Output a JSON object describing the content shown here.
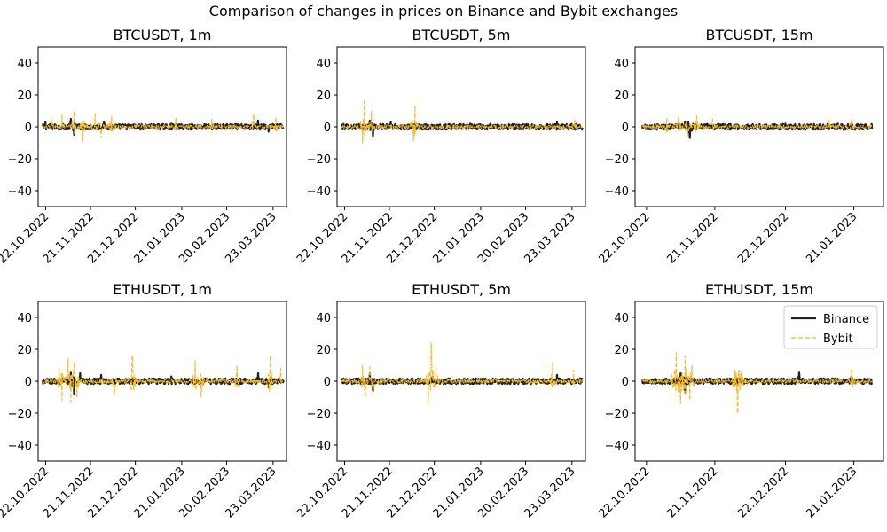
{
  "figure": {
    "title": "Comparison of changes in prices on Binance and Bybit exchanges"
  },
  "colors": {
    "binance": "#1e2329",
    "bybit": "#f7b928",
    "axes": "#000000",
    "background": "#ffffff"
  },
  "legend": {
    "location": "upper right of ETHUSDT, 15m panel",
    "items": [
      {
        "label": "Binance",
        "style": "solid"
      },
      {
        "label": "Bybit",
        "style": "dashed"
      }
    ]
  },
  "chart_data": [
    {
      "type": "line",
      "title": "BTCUSDT, 1m",
      "ylim": [
        -50,
        50
      ],
      "yticks": [
        40,
        20,
        0,
        -20,
        -40
      ],
      "xlim": [
        "2022-10-17",
        "2023-04-01"
      ],
      "xticks": [
        {
          "label": "22.10.2022",
          "date": "2022-10-22"
        },
        {
          "label": "21.11.2022",
          "date": "2022-11-21"
        },
        {
          "label": "21.12.2022",
          "date": "2022-12-21"
        },
        {
          "label": "21.01.2023",
          "date": "2023-01-21"
        },
        {
          "label": "20.02.2023",
          "date": "2023-02-20"
        },
        {
          "label": "23.03.2023",
          "date": "2023-03-23"
        }
      ],
      "x_range": [
        "2022-10-20",
        "2023-03-30"
      ],
      "series": [
        {
          "name": "Binance",
          "style": "solid",
          "spikes": [
            [
              "2022-10-22",
              3
            ],
            [
              "2022-11-08",
              5
            ],
            [
              "2022-11-10",
              -5
            ],
            [
              "2022-11-30",
              3
            ],
            [
              "2023-01-14",
              2
            ],
            [
              "2023-03-13",
              4
            ],
            [
              "2023-03-20",
              -3
            ]
          ]
        },
        {
          "name": "Bybit",
          "style": "dashed",
          "spikes": [
            [
              "2022-10-26",
              5
            ],
            [
              "2022-11-02",
              8
            ],
            [
              "2022-11-10",
              10
            ],
            [
              "2022-11-16",
              -9
            ],
            [
              "2022-11-24",
              8
            ],
            [
              "2022-11-28",
              -7
            ],
            [
              "2022-12-05",
              7
            ],
            [
              "2023-01-17",
              6
            ],
            [
              "2023-02-10",
              5
            ],
            [
              "2023-03-10",
              8
            ],
            [
              "2023-03-25",
              6
            ]
          ]
        }
      ]
    },
    {
      "type": "line",
      "title": "BTCUSDT, 5m",
      "ylim": [
        -50,
        50
      ],
      "yticks": [
        40,
        20,
        0,
        -20,
        -40
      ],
      "xlim": [
        "2022-10-17",
        "2023-04-01"
      ],
      "xticks": [
        {
          "label": "22.10.2022",
          "date": "2022-10-22"
        },
        {
          "label": "21.11.2022",
          "date": "2022-11-21"
        },
        {
          "label": "21.12.2022",
          "date": "2022-12-21"
        },
        {
          "label": "21.01.2023",
          "date": "2023-01-21"
        },
        {
          "label": "20.02.2023",
          "date": "2023-02-20"
        },
        {
          "label": "23.03.2023",
          "date": "2023-03-23"
        }
      ],
      "x_range": [
        "2022-10-20",
        "2023-03-30"
      ],
      "series": [
        {
          "name": "Binance",
          "style": "solid",
          "spikes": [
            [
              "2022-11-08",
              4
            ],
            [
              "2022-11-10",
              -6
            ],
            [
              "2022-11-22",
              3
            ],
            [
              "2023-01-14",
              2
            ],
            [
              "2023-03-13",
              3
            ]
          ]
        },
        {
          "name": "Bybit",
          "style": "dashed",
          "spikes": [
            [
              "2022-11-04",
              16
            ],
            [
              "2022-11-03",
              -10
            ],
            [
              "2022-11-09",
              10
            ],
            [
              "2022-12-08",
              13
            ],
            [
              "2022-12-07",
              -9
            ],
            [
              "2023-03-25",
              5
            ]
          ]
        }
      ]
    },
    {
      "type": "line",
      "title": "BTCUSDT, 15m",
      "ylim": [
        -50,
        50
      ],
      "yticks": [
        40,
        20,
        0,
        -20,
        -40
      ],
      "xlim": [
        "2022-10-17",
        "2023-02-03"
      ],
      "xticks": [
        {
          "label": "22.10.2022",
          "date": "2022-10-22"
        },
        {
          "label": "21.11.2022",
          "date": "2022-11-21"
        },
        {
          "label": "22.12.2022",
          "date": "2022-12-22"
        },
        {
          "label": "21.01.2023",
          "date": "2023-01-21"
        }
      ],
      "x_range": [
        "2022-10-20",
        "2023-01-29"
      ],
      "series": [
        {
          "name": "Binance",
          "style": "solid",
          "spikes": [
            [
              "2022-11-08",
              3
            ],
            [
              "2022-11-10",
              -7
            ],
            [
              "2022-12-22",
              2
            ],
            [
              "2023-01-14",
              2
            ]
          ]
        },
        {
          "name": "Bybit",
          "style": "dashed",
          "spikes": [
            [
              "2022-10-31",
              6
            ],
            [
              "2022-11-05",
              6
            ],
            [
              "2022-11-13",
              7
            ],
            [
              "2022-11-09",
              -6
            ],
            [
              "2022-11-20",
              5
            ],
            [
              "2023-01-10",
              4
            ],
            [
              "2023-01-20",
              5
            ]
          ]
        }
      ]
    },
    {
      "type": "line",
      "title": "ETHUSDT, 1m",
      "ylim": [
        -50,
        50
      ],
      "yticks": [
        40,
        20,
        0,
        -20,
        -40
      ],
      "xlim": [
        "2022-10-17",
        "2023-04-01"
      ],
      "xticks": [
        {
          "label": "22.10.2022",
          "date": "2022-10-22"
        },
        {
          "label": "21.11.2022",
          "date": "2022-11-21"
        },
        {
          "label": "21.12.2022",
          "date": "2022-12-21"
        },
        {
          "label": "21.01.2023",
          "date": "2023-01-21"
        },
        {
          "label": "20.02.2023",
          "date": "2023-02-20"
        },
        {
          "label": "23.03.2023",
          "date": "2023-03-23"
        }
      ],
      "x_range": [
        "2022-10-20",
        "2023-03-30"
      ],
      "series": [
        {
          "name": "Binance",
          "style": "solid",
          "spikes": [
            [
              "2022-11-08",
              6
            ],
            [
              "2022-11-10",
              -8
            ],
            [
              "2022-11-14",
              5
            ],
            [
              "2022-11-28",
              4
            ],
            [
              "2023-01-14",
              3
            ],
            [
              "2023-03-13",
              5
            ],
            [
              "2023-03-20",
              -4
            ]
          ]
        },
        {
          "name": "Bybit",
          "style": "dashed",
          "spikes": [
            [
              "2022-10-31",
              8
            ],
            [
              "2022-11-02",
              -12
            ],
            [
              "2022-11-06",
              14
            ],
            [
              "2022-11-08",
              -13
            ],
            [
              "2022-11-10",
              12
            ],
            [
              "2022-11-12",
              -10
            ],
            [
              "2022-12-07",
              -9
            ],
            [
              "2022-12-19",
              16
            ],
            [
              "2023-01-30",
              13
            ],
            [
              "2023-02-03",
              -10
            ],
            [
              "2023-02-27",
              10
            ],
            [
              "2023-03-21",
              16
            ],
            [
              "2023-03-28",
              8
            ]
          ]
        }
      ]
    },
    {
      "type": "line",
      "title": "ETHUSDT, 5m",
      "ylim": [
        -50,
        50
      ],
      "yticks": [
        40,
        20,
        0,
        -20,
        -40
      ],
      "xlim": [
        "2022-10-17",
        "2023-04-01"
      ],
      "xticks": [
        {
          "label": "22.10.2022",
          "date": "2022-10-22"
        },
        {
          "label": "21.11.2022",
          "date": "2022-11-21"
        },
        {
          "label": "21.12.2022",
          "date": "2022-12-21"
        },
        {
          "label": "21.01.2023",
          "date": "2023-01-21"
        },
        {
          "label": "20.02.2023",
          "date": "2023-02-20"
        },
        {
          "label": "23.03.2023",
          "date": "2023-03-23"
        }
      ],
      "x_range": [
        "2022-10-20",
        "2023-03-30"
      ],
      "series": [
        {
          "name": "Binance",
          "style": "solid",
          "spikes": [
            [
              "2022-11-08",
              5
            ],
            [
              "2022-11-10",
              -6
            ],
            [
              "2022-12-20",
              3
            ],
            [
              "2023-03-13",
              4
            ]
          ]
        },
        {
          "name": "Bybit",
          "style": "dashed",
          "spikes": [
            [
              "2022-11-03",
              10
            ],
            [
              "2022-11-05",
              -10
            ],
            [
              "2022-11-08",
              9
            ],
            [
              "2022-11-10",
              -9
            ],
            [
              "2022-12-19",
              24
            ],
            [
              "2022-12-17",
              -13
            ],
            [
              "2022-12-22",
              10
            ],
            [
              "2023-03-10",
              12
            ],
            [
              "2023-03-24",
              7
            ]
          ]
        }
      ]
    },
    {
      "type": "line",
      "title": "ETHUSDT, 15m",
      "ylim": [
        -50,
        50
      ],
      "yticks": [
        40,
        20,
        0,
        -20,
        -40
      ],
      "xlim": [
        "2022-10-17",
        "2023-02-03"
      ],
      "xticks": [
        {
          "label": "22.10.2022",
          "date": "2022-10-22"
        },
        {
          "label": "21.11.2022",
          "date": "2022-11-21"
        },
        {
          "label": "22.12.2022",
          "date": "2022-12-22"
        },
        {
          "label": "21.01.2023",
          "date": "2023-01-21"
        }
      ],
      "x_range": [
        "2022-10-20",
        "2023-01-29"
      ],
      "series": [
        {
          "name": "Binance",
          "style": "solid",
          "spikes": [
            [
              "2022-11-06",
              5
            ],
            [
              "2022-11-08",
              -7
            ],
            [
              "2022-12-28",
              6
            ],
            [
              "2023-01-20",
              3
            ]
          ]
        },
        {
          "name": "Bybit",
          "style": "dashed",
          "spikes": [
            [
              "2022-11-04",
              18
            ],
            [
              "2022-11-06",
              -14
            ],
            [
              "2022-11-08",
              16
            ],
            [
              "2022-11-10",
              -12
            ],
            [
              "2022-11-11",
              10
            ],
            [
              "2022-12-01",
              24
            ],
            [
              "2022-12-01",
              -20
            ],
            [
              "2023-01-20",
              8
            ]
          ]
        }
      ]
    }
  ]
}
